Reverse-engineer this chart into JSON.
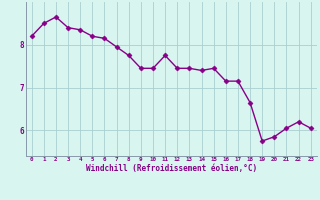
{
  "x": [
    0,
    1,
    2,
    3,
    4,
    5,
    6,
    7,
    8,
    9,
    10,
    11,
    12,
    13,
    14,
    15,
    16,
    17,
    18,
    19,
    20,
    21,
    22,
    23
  ],
  "y": [
    8.2,
    8.5,
    8.65,
    8.4,
    8.35,
    8.2,
    8.15,
    7.95,
    7.75,
    7.45,
    7.45,
    7.75,
    7.45,
    7.45,
    7.4,
    7.45,
    7.15,
    7.15,
    6.65,
    5.75,
    5.85,
    6.05,
    6.2,
    6.05
  ],
  "line_color": "#880088",
  "marker": "D",
  "marker_size": 2.5,
  "bg_color": "#d8f5f0",
  "grid_color": "#aacfcf",
  "xlabel": "Windchill (Refroidissement éolien,°C)",
  "xlim": [
    -0.5,
    23.5
  ],
  "ylim": [
    5.4,
    9.0
  ],
  "yticks": [
    6,
    7,
    8
  ],
  "xticks": [
    0,
    1,
    2,
    3,
    4,
    5,
    6,
    7,
    8,
    9,
    10,
    11,
    12,
    13,
    14,
    15,
    16,
    17,
    18,
    19,
    20,
    21,
    22,
    23
  ],
  "line_width": 1.0,
  "spine_color": "#8899aa"
}
